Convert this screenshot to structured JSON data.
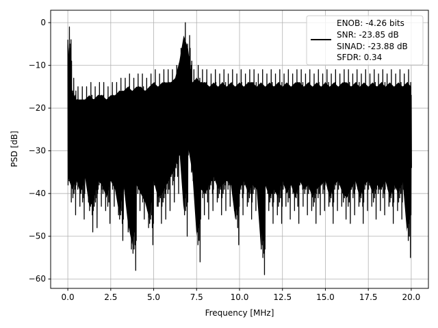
{
  "chart_data": {
    "type": "line",
    "title": "",
    "xlabel": "Frequency [MHz]",
    "ylabel": "PSD [dB]",
    "xlim": [
      -1.0,
      21.0
    ],
    "ylim": [
      -62.2,
      2.9
    ],
    "grid": true,
    "xticks": [
      0,
      2.5,
      5,
      7.5,
      10,
      12.5,
      15,
      17.5,
      20
    ],
    "xtick_labels": [
      "0.0",
      "2.5",
      "5.0",
      "7.5",
      "10.0",
      "12.5",
      "15.0",
      "17.5",
      "20.0"
    ],
    "yticks": [
      0,
      -10,
      -20,
      -30,
      -40,
      -50,
      -60
    ],
    "ytick_labels": [
      "0",
      "−10",
      "−20",
      "−30",
      "−40",
      "−50",
      "−60"
    ],
    "legend_placement": "upper-right",
    "legend": [
      "ENOB: -4.26 bits",
      "SNR: -23.85 dB",
      "SINAD: -23.88 dB",
      "SFDR: 0.34"
    ],
    "series": [
      {
        "name": "PSD",
        "color": "#000000",
        "x_start": 0,
        "x_step": 0.25,
        "upper_envelope": [
          -1,
          -13,
          -15,
          -15,
          -15,
          -14,
          -15,
          -14,
          -14,
          -15,
          -14,
          -14,
          -13,
          -13,
          -12,
          -13,
          -12,
          -12,
          -13,
          -12,
          -11,
          -12,
          -11,
          -11,
          -11,
          -10,
          -6,
          0,
          -3,
          -11,
          -10,
          -11,
          -11,
          -12,
          -11,
          -12,
          -11,
          -12,
          -11,
          -12,
          -11,
          -12,
          -11,
          -11,
          -12,
          -11,
          -12,
          -11,
          -12,
          -11,
          -12,
          -11,
          -12,
          -11,
          -11,
          -12,
          -11,
          -12,
          -11,
          -12,
          -11,
          -12,
          -11,
          -12,
          -11,
          -11,
          -12,
          -11,
          -12,
          -11,
          -12,
          -11,
          -12,
          -11,
          -12,
          -11,
          -12,
          -11,
          -12,
          -11,
          -12
        ],
        "lower_envelope": [
          -42,
          -45,
          -43,
          -46,
          -42,
          -49,
          -48,
          -43,
          -44,
          -47,
          -43,
          -45,
          -51,
          -44,
          -53,
          -58,
          -44,
          -46,
          -48,
          -52,
          -43,
          -47,
          -46,
          -44,
          -42,
          -40,
          -36,
          -50,
          -35,
          -41,
          -56,
          -45,
          -46,
          -44,
          -42,
          -45,
          -44,
          -43,
          -44,
          -52,
          -45,
          -43,
          -46,
          -44,
          -45,
          -59,
          -44,
          -47,
          -45,
          -47,
          -43,
          -46,
          -44,
          -47,
          -43,
          -45,
          -44,
          -47,
          -45,
          -44,
          -43,
          -47,
          -44,
          -43,
          -46,
          -47,
          -45,
          -43,
          -47,
          -44,
          -43,
          -46,
          -44,
          -45,
          -43,
          -47,
          -44,
          -46,
          -43,
          -55,
          -40
        ]
      }
    ]
  }
}
